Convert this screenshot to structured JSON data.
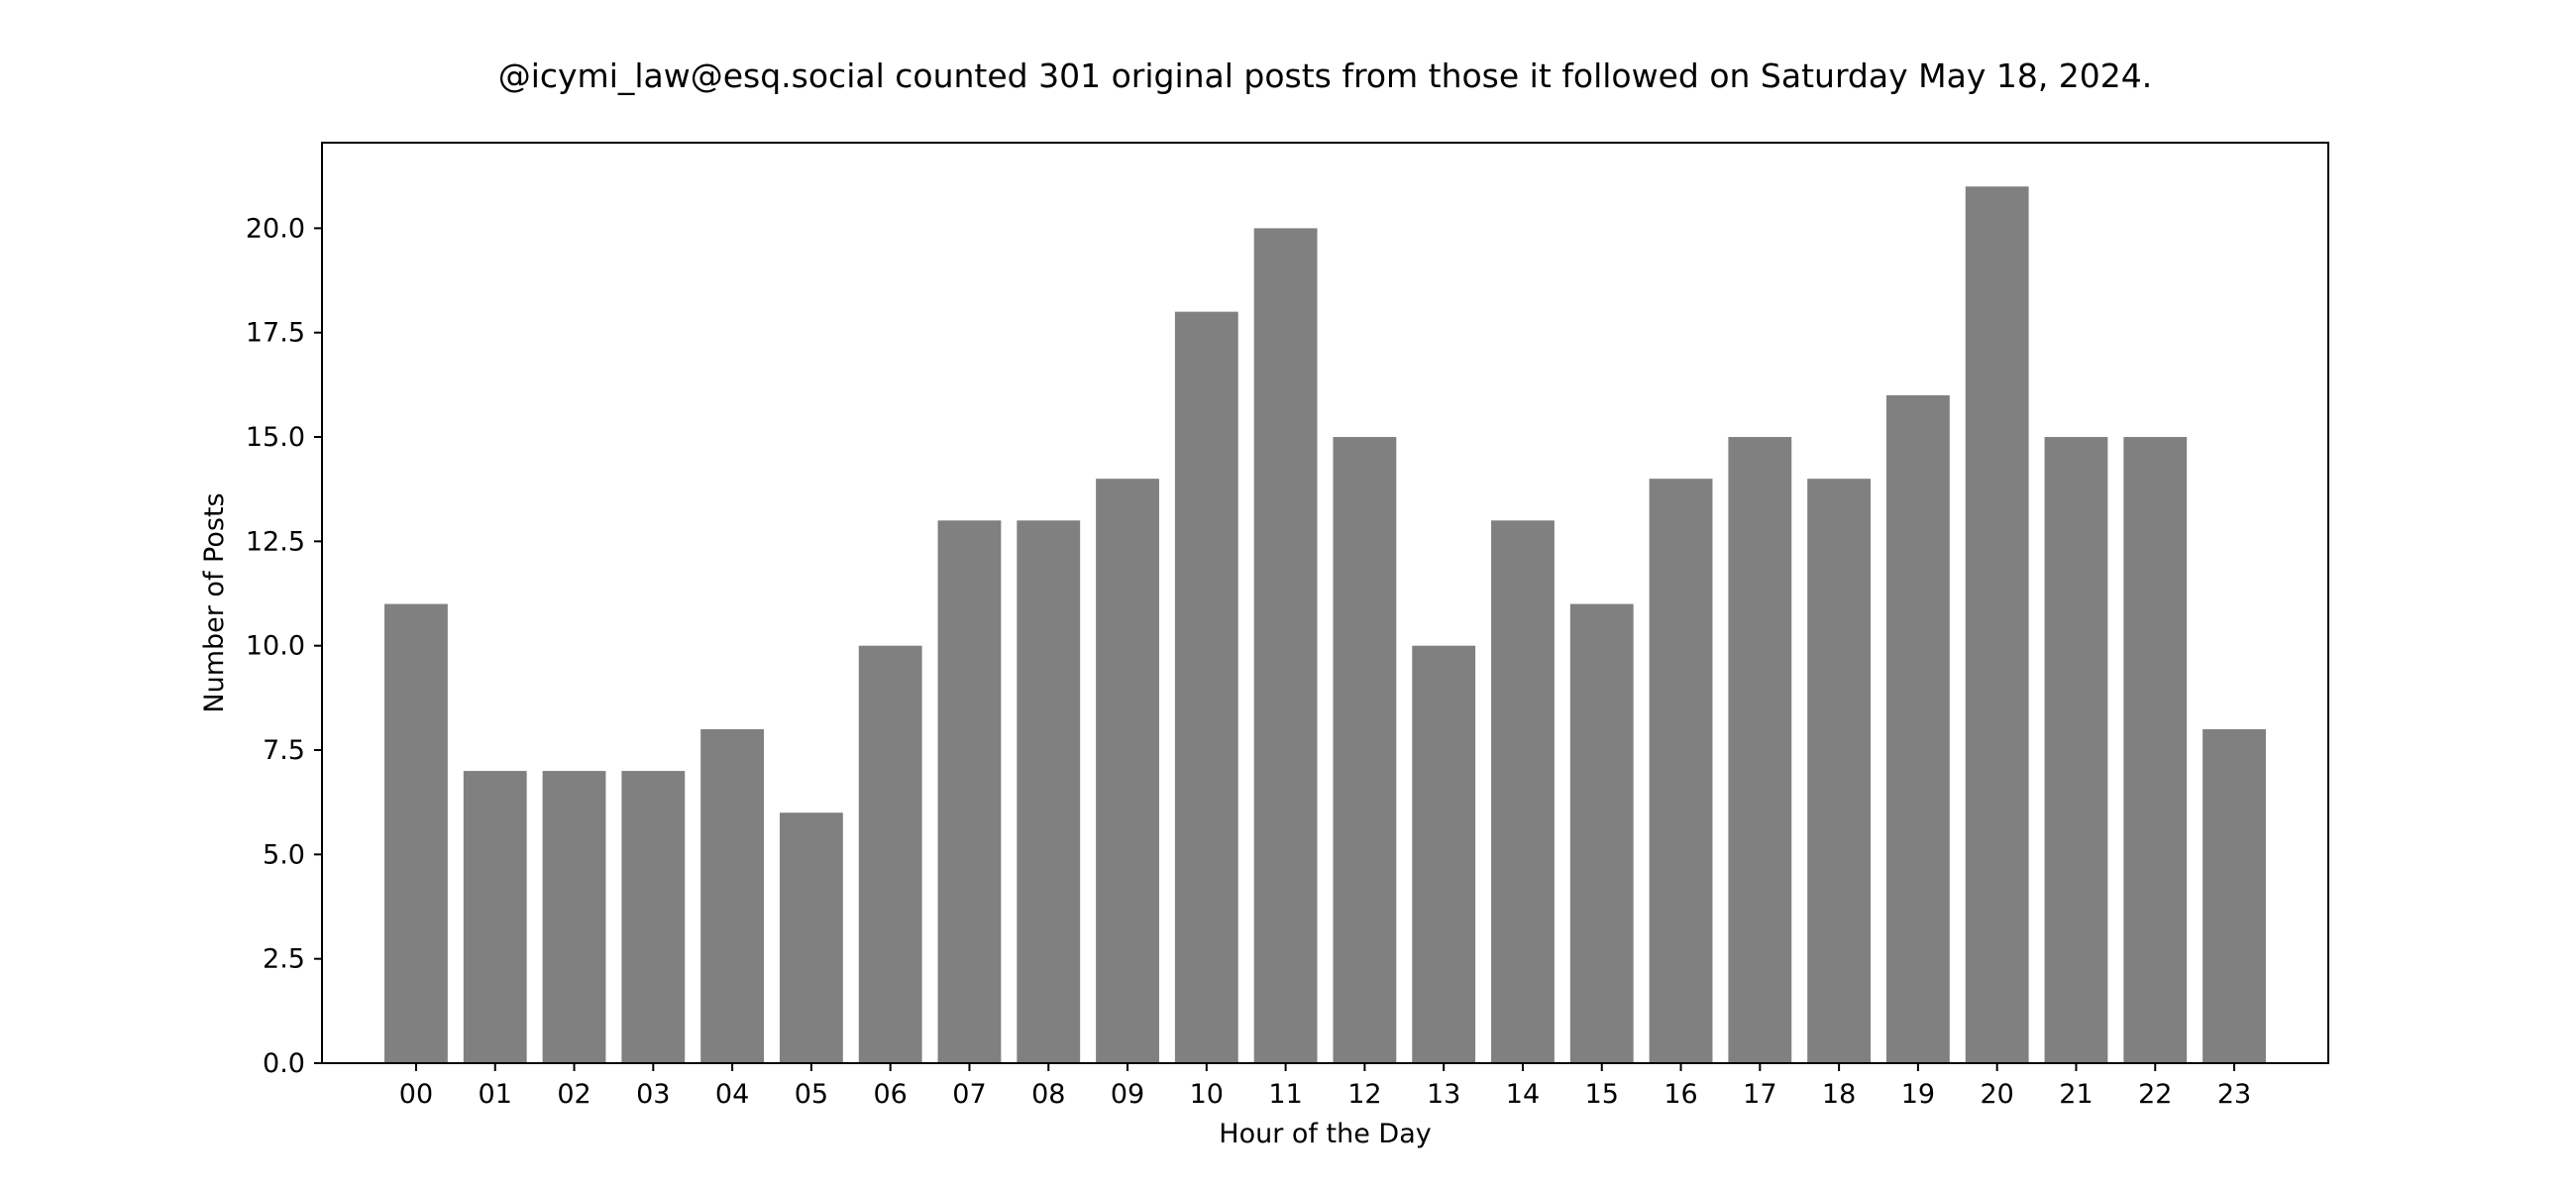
{
  "chart_data": {
    "type": "bar",
    "title": "@icymi_law@esq.social counted 301 original posts from those it followed on Saturday May 18, 2024.",
    "xlabel": "Hour of the Day",
    "ylabel": "Number of Posts",
    "categories": [
      "00",
      "01",
      "02",
      "03",
      "04",
      "05",
      "06",
      "07",
      "08",
      "09",
      "10",
      "11",
      "12",
      "13",
      "14",
      "15",
      "16",
      "17",
      "18",
      "19",
      "20",
      "21",
      "22",
      "23"
    ],
    "values": [
      11,
      7,
      7,
      7,
      8,
      6,
      10,
      13,
      13,
      14,
      18,
      20,
      15,
      10,
      13,
      11,
      14,
      15,
      14,
      16,
      21,
      15,
      15,
      8
    ],
    "ylim": [
      0,
      22.05
    ],
    "yticks": [
      0,
      2.5,
      5,
      7.5,
      10,
      12.5,
      15,
      17.5,
      20
    ],
    "ytick_labels": [
      "0.0",
      "2.5",
      "5.0",
      "7.5",
      "10.0",
      "12.5",
      "15.0",
      "17.5",
      "20.0"
    ],
    "bar_color": "#808080",
    "grid": false,
    "legend": false
  }
}
